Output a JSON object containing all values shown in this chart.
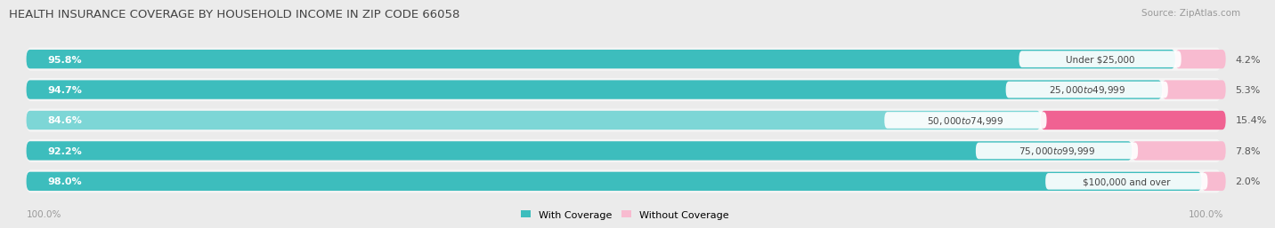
{
  "title": "HEALTH INSURANCE COVERAGE BY HOUSEHOLD INCOME IN ZIP CODE 66058",
  "source": "Source: ZipAtlas.com",
  "categories": [
    "Under $25,000",
    "$25,000 to $49,999",
    "$50,000 to $74,999",
    "$75,000 to $99,999",
    "$100,000 and over"
  ],
  "with_coverage": [
    95.8,
    94.7,
    84.6,
    92.2,
    98.0
  ],
  "without_coverage": [
    4.2,
    5.3,
    15.4,
    7.8,
    2.0
  ],
  "color_with": "#3dbdbd",
  "color_with_light": "#7dd6d6",
  "color_without": "#f06292",
  "color_without_light": "#f8bbd0",
  "bg_color": "#ebebeb",
  "bar_bg": "#f5f5f5",
  "title_fontsize": 9.5,
  "source_fontsize": 7.5,
  "label_fontsize": 8,
  "cat_fontsize": 7.5,
  "legend_fontsize": 8,
  "axis_label_fontsize": 7.5,
  "bar_height": 0.62,
  "x_left_label": "100.0%",
  "x_right_label": "100.0%"
}
